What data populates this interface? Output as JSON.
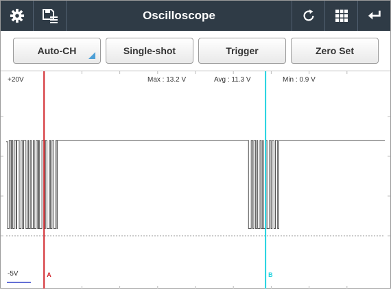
{
  "app": {
    "title": "Oscilloscope",
    "left_icons": [
      "gear-icon",
      "save-list-icon"
    ],
    "right_icons": [
      "refresh-icon",
      "grid-icon",
      "return-icon"
    ],
    "header_color": "#2f3b46"
  },
  "controls": {
    "auto_ch": "Auto-CH",
    "single_shot": "Single-shot",
    "trigger": "Trigger",
    "zero_set": "Zero Set",
    "accent": "#4d9fd6"
  },
  "scope": {
    "y_top_label": "+20V",
    "y_bottom_label": "-5V",
    "max_label": "Max : 13.2 V",
    "avg_label": "Avg : 11.3 V",
    "min_label": "Min : 0.9 V",
    "cursor_a_label": "A",
    "cursor_b_label": "B",
    "cursor_a_color": "#d2262c",
    "cursor_b_color": "#22d3e0",
    "trace_color": "#555555",
    "v_min": -5,
    "v_max": 20,
    "high_level_v": 12.0,
    "low_level_v": 0.9,
    "burst1_range": [
      0.0,
      0.135
    ],
    "burst2_range": [
      0.64,
      0.72
    ],
    "cursor_a_pos": 0.1,
    "cursor_b_pos": 0.685
  }
}
